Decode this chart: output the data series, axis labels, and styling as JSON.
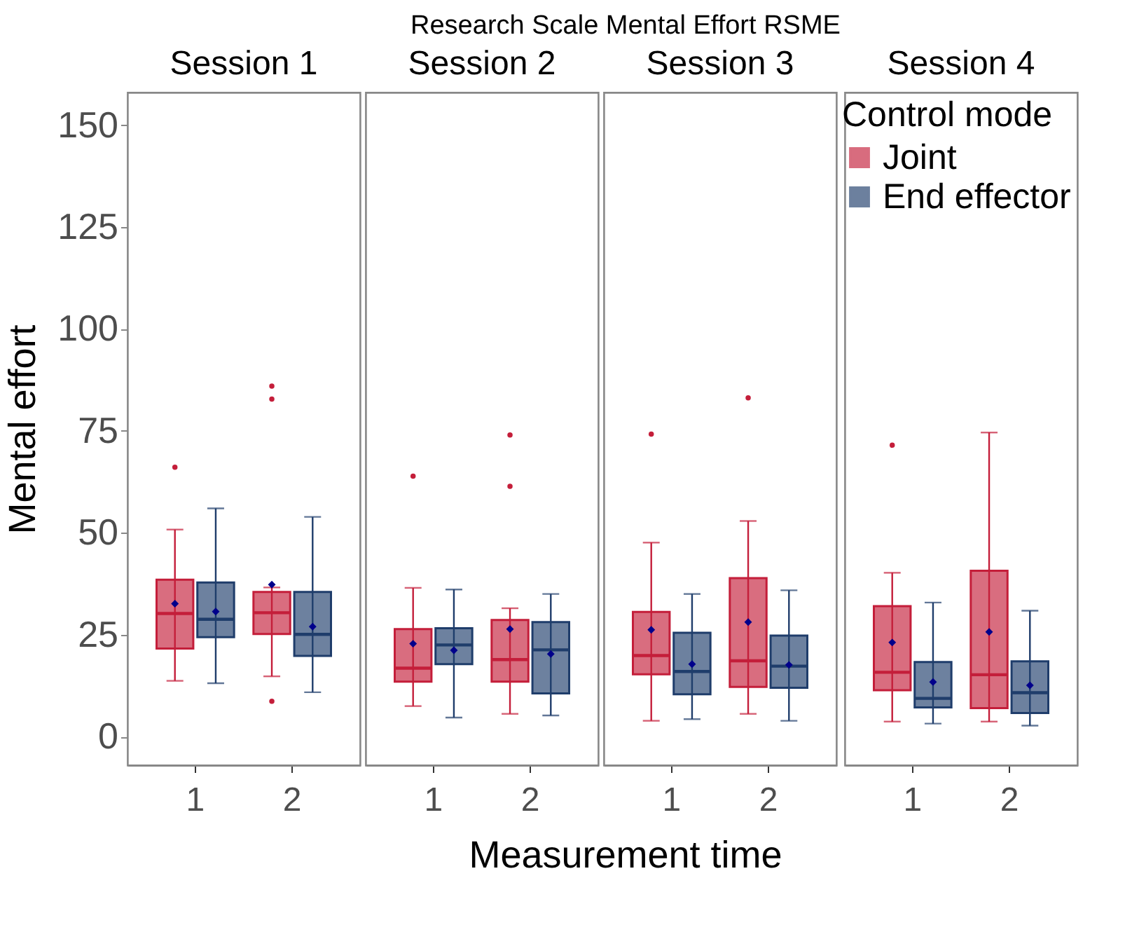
{
  "chart_data": [
    {
      "type": "box",
      "title": "Session 1",
      "annotations": [
        "Research Scale Mental Effort RSME"
      ],
      "xlabel": "Measurement time",
      "ylabel": "Mental effort",
      "categories": [
        "1",
        "2"
      ],
      "ylim": [
        -7,
        158
      ],
      "yticks": [
        0,
        25,
        50,
        75,
        100,
        125,
        150
      ],
      "series": [
        {
          "color": "#c41e3a",
          "boxes": [
            {
              "low": 13.7,
              "q1": 21.6,
              "median": 30.2,
              "q3": 38.5,
              "high": 50.8,
              "mean": 32.6,
              "outliers": [
                66.1
              ]
            },
            {
              "low": 14.8,
              "q1": 25.2,
              "median": 30.4,
              "q3": 35.5,
              "high": 36.6,
              "mean": 37.3,
              "outliers": [
                86,
                82.8,
                8.7
              ]
            }
          ]
        },
        {
          "color": "#1f3d6b",
          "boxes": [
            {
              "low": 13.1,
              "q1": 24.4,
              "median": 28.8,
              "q3": 37.8,
              "high": 56,
              "mean": 30.7
            },
            {
              "low": 10.9,
              "q1": 19.8,
              "median": 25.1,
              "q3": 35.5,
              "high": 53.9,
              "mean": 27
            }
          ]
        }
      ]
    },
    {
      "type": "box",
      "title": "Session 2",
      "categories": [
        "1",
        "2"
      ],
      "ylim": [
        -7,
        158
      ],
      "yticks": [
        0,
        25,
        50,
        75,
        100,
        125,
        150
      ],
      "tick_labels": "x",
      "series": [
        {
          "color": "#c41e3a",
          "boxes": [
            {
              "low": 7.5,
              "q1": 13.5,
              "median": 16.8,
              "q3": 26.4,
              "high": 36.5,
              "mean": 22.8,
              "outliers": [
                63.9
              ]
            },
            {
              "low": 5.6,
              "q1": 13.5,
              "median": 18.9,
              "q3": 28.6,
              "high": 31.5,
              "mean": 26.4,
              "outliers": [
                74,
                61.4
              ]
            }
          ]
        },
        {
          "color": "#1f3d6b",
          "boxes": [
            {
              "low": 4.7,
              "q1": 17.8,
              "median": 22.5,
              "q3": 26.6,
              "high": 36.1,
              "mean": 21.2
            },
            {
              "low": 5.2,
              "q1": 10.6,
              "median": 21.3,
              "q3": 28.1,
              "high": 35,
              "mean": 20.3
            }
          ]
        }
      ]
    },
    {
      "type": "box",
      "title": "Session 3",
      "categories": [
        "1",
        "2"
      ],
      "ylim": [
        -7,
        158
      ],
      "yticks": [
        0,
        25,
        50,
        75,
        100,
        125,
        150
      ],
      "tick_labels": "x",
      "series": [
        {
          "color": "#c41e3a",
          "boxes": [
            {
              "low": 3.9,
              "q1": 15.3,
              "median": 19.9,
              "q3": 30.6,
              "high": 47.6,
              "mean": 26.2,
              "outliers": [
                74.2
              ]
            },
            {
              "low": 5.6,
              "q1": 12.2,
              "median": 18.6,
              "q3": 38.9,
              "high": 52.9,
              "mean": 28.1,
              "outliers": [
                83.1
              ]
            }
          ]
        },
        {
          "color": "#1f3d6b",
          "boxes": [
            {
              "low": 4.3,
              "q1": 10.4,
              "median": 16,
              "q3": 25.5,
              "high": 35,
              "mean": 17.8
            },
            {
              "low": 3.9,
              "q1": 12,
              "median": 17.3,
              "q3": 24.8,
              "high": 35.9,
              "mean": 17.6
            }
          ]
        }
      ]
    },
    {
      "type": "box",
      "title": "Session 4",
      "categories": [
        "1",
        "2"
      ],
      "ylim": [
        -7,
        158
      ],
      "yticks": [
        0,
        25,
        50,
        75,
        100,
        125,
        150
      ],
      "tick_labels": "x",
      "legend": "top right",
      "legend_title": "Control mode",
      "series": [
        {
          "name": "Joint",
          "color": "#c41e3a",
          "boxes": [
            {
              "low": 3.7,
              "q1": 11.4,
              "median": 15.8,
              "q3": 32,
              "high": 40.2,
              "mean": 23.1,
              "outliers": [
                71.5
              ]
            },
            {
              "low": 3.7,
              "q1": 7,
              "median": 15.2,
              "q3": 40.7,
              "high": 74.6,
              "mean": 25.7
            }
          ]
        },
        {
          "name": "End effector",
          "color": "#1f3d6b",
          "boxes": [
            {
              "low": 3.2,
              "q1": 7.2,
              "median": 9.4,
              "q3": 18.3,
              "high": 32.9,
              "mean": 13.4
            },
            {
              "low": 2.7,
              "q1": 5.8,
              "median": 10.8,
              "q3": 18.5,
              "high": 30.9,
              "mean": 12.6
            }
          ]
        }
      ]
    }
  ]
}
